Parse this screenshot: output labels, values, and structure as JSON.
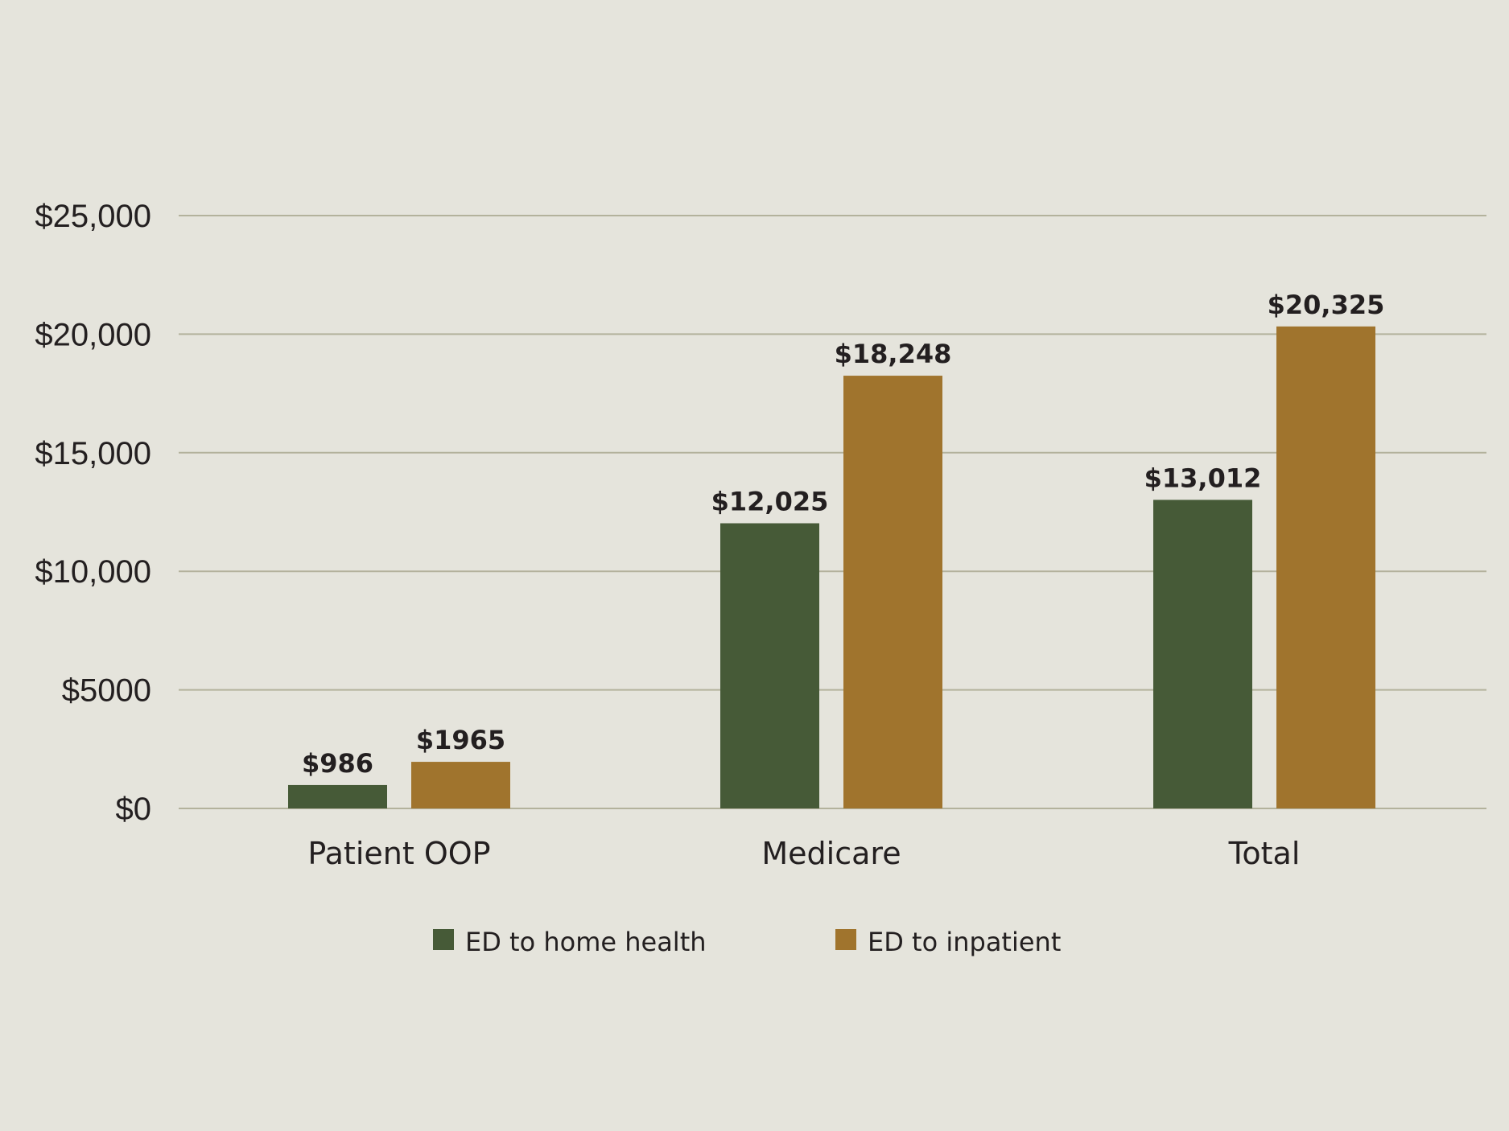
{
  "chart_data": {
    "type": "bar",
    "title": "",
    "xlabel": "",
    "ylabel": "",
    "categories": [
      "Patient OOP",
      "Medicare",
      "Total"
    ],
    "series": [
      {
        "name": "ED to home health",
        "color": "#465a37",
        "values": [
          986,
          12025,
          13012
        ],
        "labels": [
          "$986",
          "$12,025",
          "$13,012"
        ]
      },
      {
        "name": "ED to inpatient",
        "color": "#a0742d",
        "values": [
          1965,
          18248,
          20325
        ],
        "labels": [
          "$1965",
          "$18,248",
          "$20,325"
        ]
      }
    ],
    "ylim": [
      0,
      25000
    ],
    "yticks": [
      0,
      5000,
      10000,
      15000,
      20000,
      25000
    ],
    "ytick_labels": [
      "$0",
      "$5000",
      "$10,000",
      "$15,000",
      "$20,000",
      "$25,000"
    ],
    "grid": true,
    "legend_position": "bottom",
    "background": "#e5e4dc",
    "gridline_color": "#b3b29c"
  }
}
